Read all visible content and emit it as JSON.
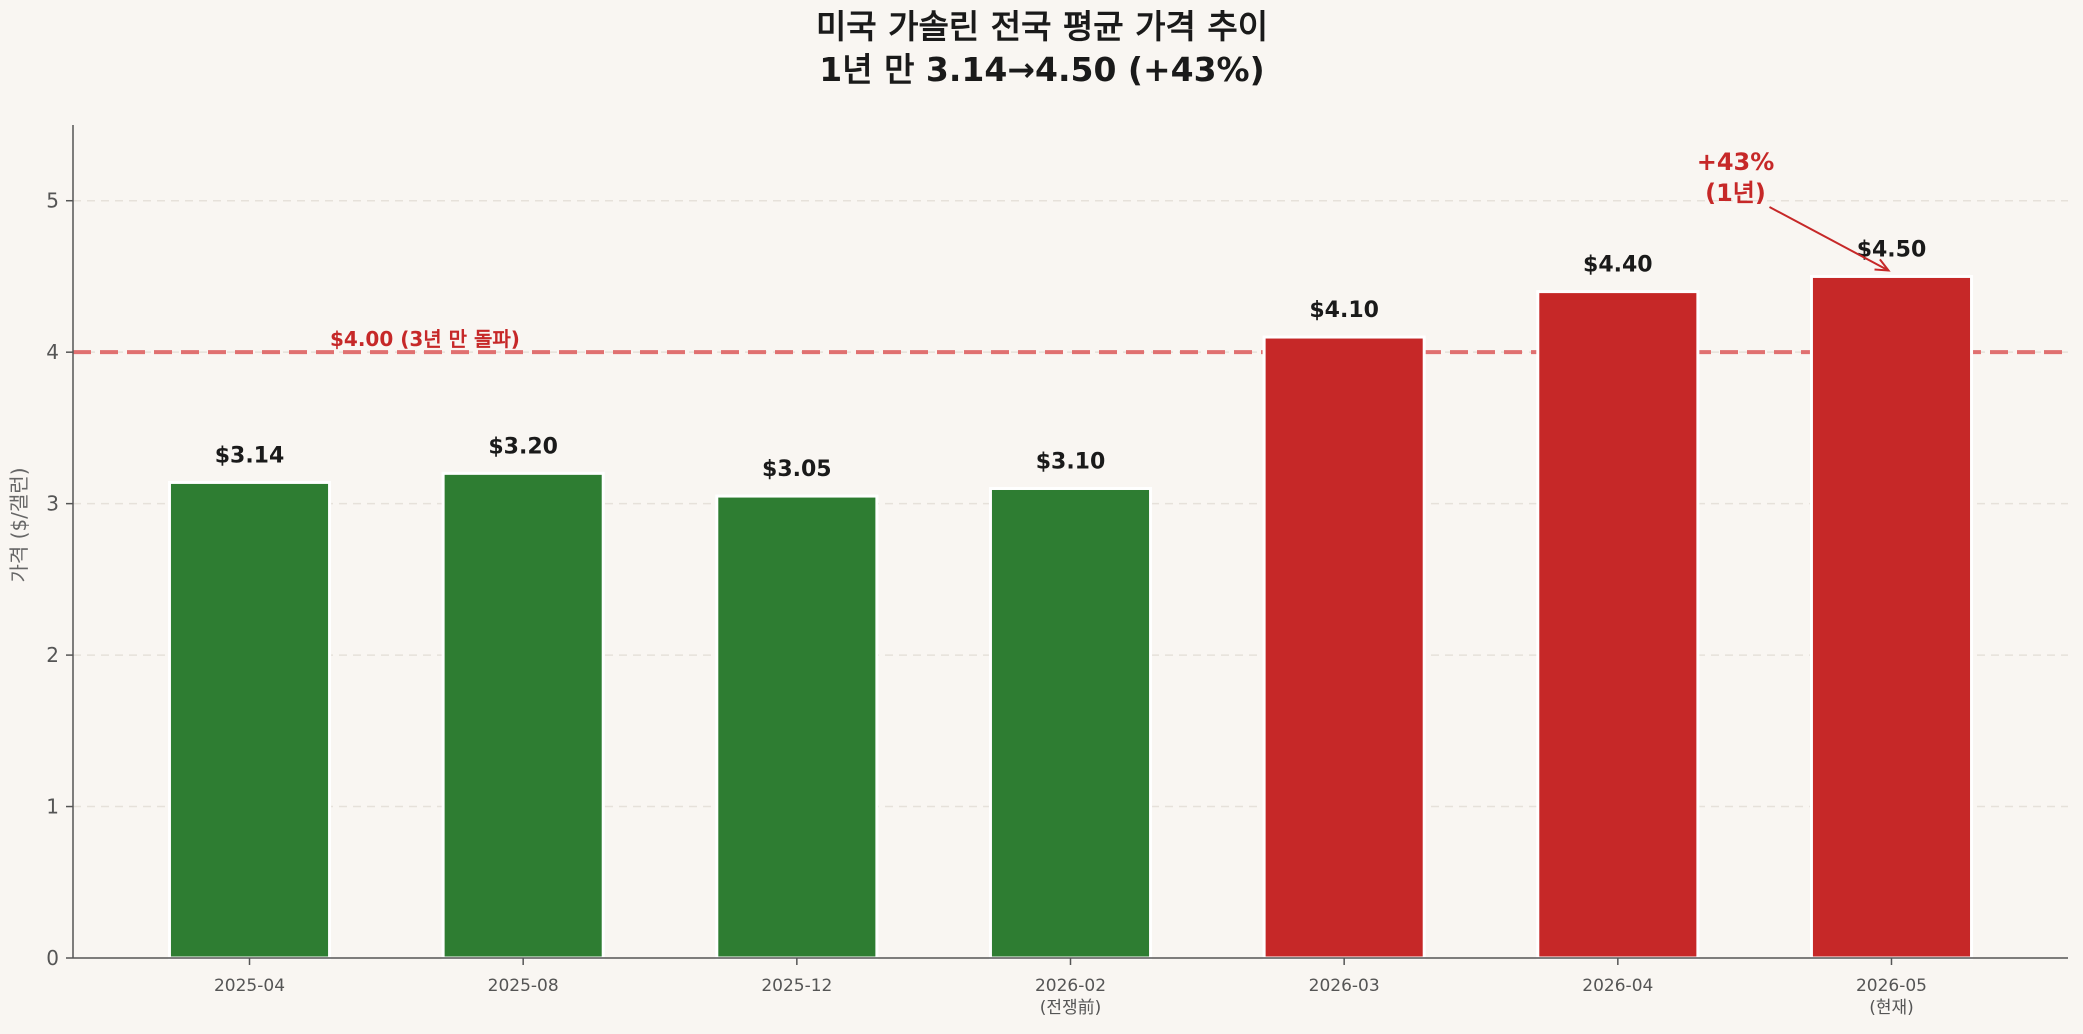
{
  "chart_data": {
    "type": "bar",
    "title_line1": "미국 가솔린 전국 평균 가격 추이",
    "title_line2": "1년 만 3.14→4.50 (+43%)",
    "ylabel": "가격 ($/갤런)",
    "ylim": [
      0,
      5.5
    ],
    "yticks": [
      0,
      1,
      2,
      3,
      4,
      5
    ],
    "grid": true,
    "categories": [
      [
        "2025-04"
      ],
      [
        "2025-08"
      ],
      [
        "2025-12"
      ],
      [
        "2026-02",
        "(전쟁前)"
      ],
      [
        "2026-03"
      ],
      [
        "2026-04"
      ],
      [
        "2026-05",
        "(현재)"
      ]
    ],
    "values": [
      3.14,
      3.2,
      3.05,
      3.1,
      4.1,
      4.4,
      4.5
    ],
    "value_labels": [
      "$3.14",
      "$3.20",
      "$3.05",
      "$3.10",
      "$4.10",
      "$4.40",
      "$4.50"
    ],
    "bar_colors": [
      "#2e7d32",
      "#2e7d32",
      "#2e7d32",
      "#2e7d32",
      "#c62828",
      "#c62828",
      "#c62828"
    ],
    "reference_line": {
      "value": 4.0,
      "label": "$4.00 (3년 만 돌파)",
      "color": "#e07070",
      "label_color": "#c62828"
    },
    "annotation": {
      "lines": [
        "+43%",
        "(1년)"
      ],
      "target_index": 6,
      "color": "#c62828"
    },
    "colors": {
      "background": "#f9f6f2",
      "axis": "#555555",
      "grid": "#e6e1da"
    }
  }
}
